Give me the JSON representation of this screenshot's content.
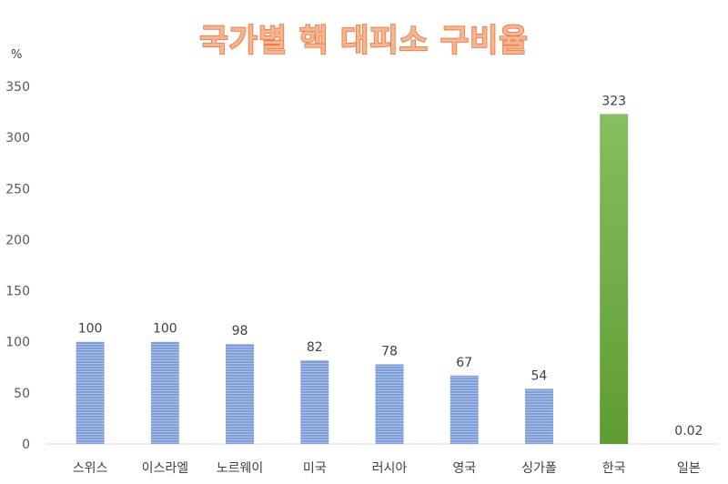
{
  "chart_data": {
    "type": "bar",
    "title": "국가별 핵 대피소 구비율",
    "ylabel": "%",
    "xlabel": "",
    "ylim": [
      0,
      350
    ],
    "yticks": [
      0,
      50,
      100,
      150,
      200,
      250,
      300,
      350
    ],
    "grid": false,
    "legend": "none",
    "categories": [
      "스위스",
      "이스라엘",
      "노르웨이",
      "미국",
      "러시아",
      "영국",
      "싱가폴",
      "한국",
      "일본"
    ],
    "values": [
      100,
      100,
      98,
      82,
      78,
      67,
      54,
      323,
      0.02
    ],
    "value_labels": [
      "100",
      "100",
      "98",
      "82",
      "78",
      "67",
      "54",
      "323",
      "0.02"
    ],
    "colors": {
      "default_bar": "#7f9fd6",
      "default_bar_stripe": "#a9bfe6",
      "highlight_bar": "#70ad47",
      "title_fill": "#f6b58f",
      "title_stroke": "#e8743b"
    },
    "highlight_index": 7
  }
}
